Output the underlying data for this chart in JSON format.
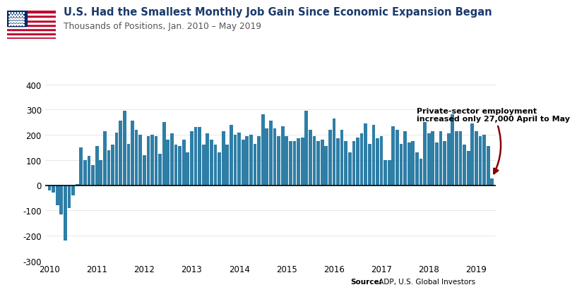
{
  "title": "U.S. Had the Smallest Monthly Job Gain Since Economic Expansion Began",
  "subtitle": "Thousands of Positions, Jan. 2010 – May 2019",
  "annotation_line1": "Private-sector employment",
  "annotation_line2": "increased only 27,000 April to May",
  "bar_color": "#2e7ea6",
  "background_color": "#ffffff",
  "title_color": "#1a3a6b",
  "arrow_color": "#8b0000",
  "ylim": [
    -300,
    400
  ],
  "yticks": [
    -300,
    -200,
    -100,
    0,
    100,
    200,
    300,
    400
  ],
  "values": [
    -20,
    -30,
    -80,
    -115,
    -220,
    -90,
    -40,
    5,
    150,
    100,
    115,
    80,
    155,
    100,
    215,
    140,
    160,
    210,
    255,
    295,
    165,
    255,
    220,
    200,
    120,
    195,
    200,
    195,
    125,
    250,
    180,
    205,
    160,
    155,
    180,
    130,
    215,
    230,
    230,
    160,
    205,
    180,
    160,
    130,
    215,
    160,
    240,
    200,
    210,
    180,
    195,
    200,
    165,
    195,
    280,
    225,
    255,
    225,
    195,
    235,
    195,
    175,
    175,
    185,
    190,
    295,
    220,
    195,
    175,
    180,
    155,
    220,
    265,
    185,
    220,
    175,
    130,
    175,
    190,
    205,
    245,
    165,
    240,
    185,
    195,
    100,
    100,
    235,
    220,
    165,
    215,
    170,
    175,
    130,
    105,
    250,
    205,
    215,
    170,
    215,
    175,
    205,
    280,
    215,
    215,
    160,
    135,
    245,
    215,
    195,
    200,
    155,
    27
  ],
  "x_tick_labels": [
    "2010",
    "2011",
    "2012",
    "2013",
    "2014",
    "2015",
    "2016",
    "2017",
    "2018",
    "2019"
  ]
}
